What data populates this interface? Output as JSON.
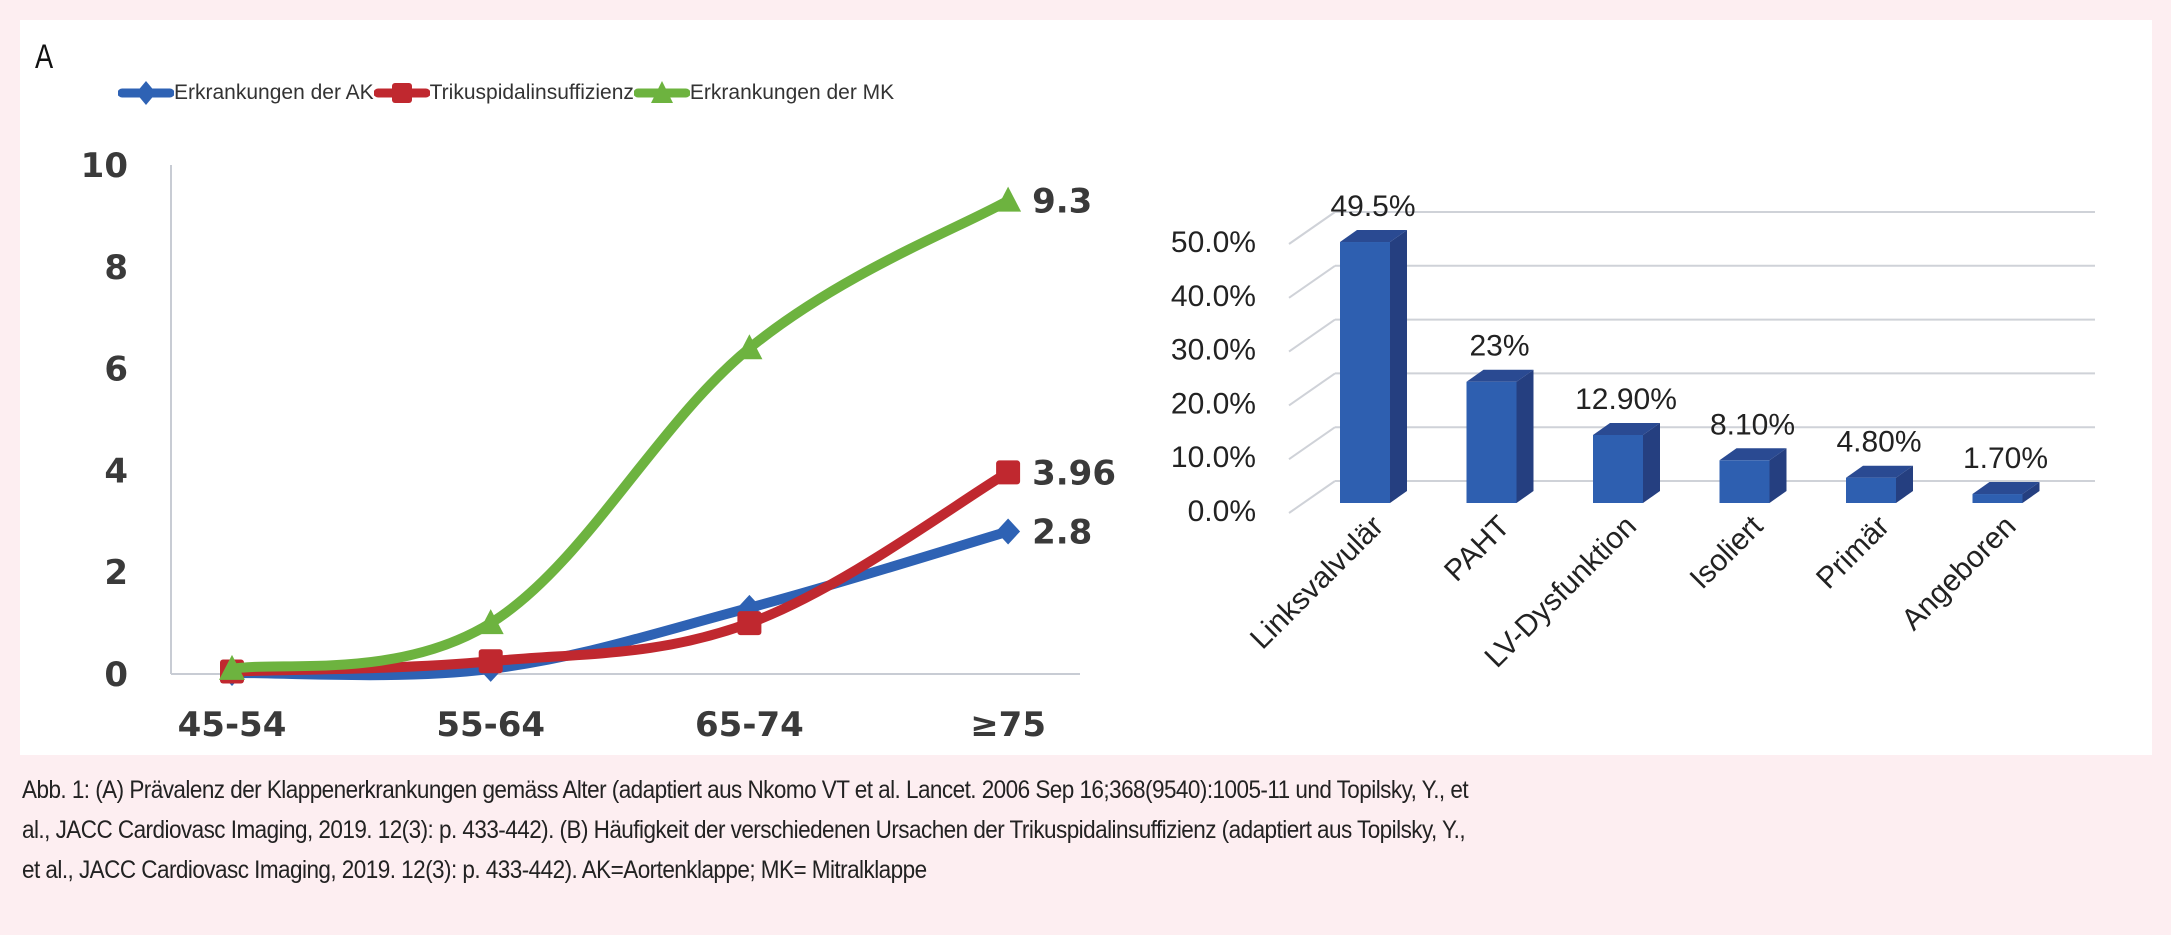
{
  "panel_label": "A",
  "legend": [
    {
      "label": "Erkrankungen der AK",
      "color": "#2e62b4",
      "marker": "diamond"
    },
    {
      "label": "Trikuspidalinsuffizienz",
      "color": "#c0282f",
      "marker": "square"
    },
    {
      "label": "Erkrankungen der MK",
      "color": "#6db33f",
      "marker": "triangle"
    }
  ],
  "caption": {
    "lines": [
      "Abb. 1: (A) Prävalenz der Klappenerkrankungen gemäss Alter (adaptiert aus Nkomo VT et al. Lancet. 2006 Sep 16;368(9540):1005-11 und Topilsky, Y., et",
      "al., JACC Cardiovasc Imaging, 2019. 12(3): p. 433-442). (B) Häufigkeit der verschiedenen Ursachen der Trikuspidalinsuffizienz (adaptiert aus Topilsky, Y.,",
      "et al., JACC Cardiovasc Imaging, 2019. 12(3): p. 433-442). AK=Aortenklappe; MK= Mitralklappe"
    ]
  },
  "chart_data": [
    {
      "type": "line",
      "title": "",
      "xlabel": "",
      "ylabel": "",
      "categories": [
        "45-54",
        "55-64",
        "65-74",
        "≥75"
      ],
      "ylim": [
        0,
        10
      ],
      "yticks": [
        0,
        2,
        4,
        6,
        8,
        10
      ],
      "grid": false,
      "legend_position": "top",
      "smooth": true,
      "series": [
        {
          "name": "Erkrankungen der AK",
          "color": "#2e62b4",
          "marker": "diamond",
          "values": [
            0.02,
            0.1,
            1.3,
            2.8
          ],
          "end_label": "2.8"
        },
        {
          "name": "Trikuspidalinsuffizienz",
          "color": "#c0282f",
          "marker": "square",
          "values": [
            0.05,
            0.25,
            1.0,
            3.96
          ],
          "end_label": "3.96"
        },
        {
          "name": "Erkrankungen der MK",
          "color": "#6db33f",
          "marker": "triangle",
          "values": [
            0.1,
            1.0,
            6.4,
            9.3
          ],
          "end_label": "9.3"
        }
      ]
    },
    {
      "type": "bar",
      "style": "3d-column",
      "title": "",
      "xlabel": "",
      "ylabel": "",
      "categories": [
        "Linksvalvulär",
        "PAHT",
        "LV-Dysfunktion",
        "Isoliert",
        "Primär",
        "Angeboren"
      ],
      "values": [
        49.5,
        23,
        12.9,
        8.1,
        4.8,
        1.7
      ],
      "data_labels": [
        "49.5%",
        "23%",
        "12.90%",
        "8.10%",
        "4.80%",
        "1.70%"
      ],
      "ylim": [
        0,
        50
      ],
      "yticks": [
        "0.0%",
        "10.0%",
        "20.0%",
        "30.0%",
        "40.0%",
        "50.0%"
      ],
      "grid": true,
      "color": "#2e5fb0"
    }
  ]
}
